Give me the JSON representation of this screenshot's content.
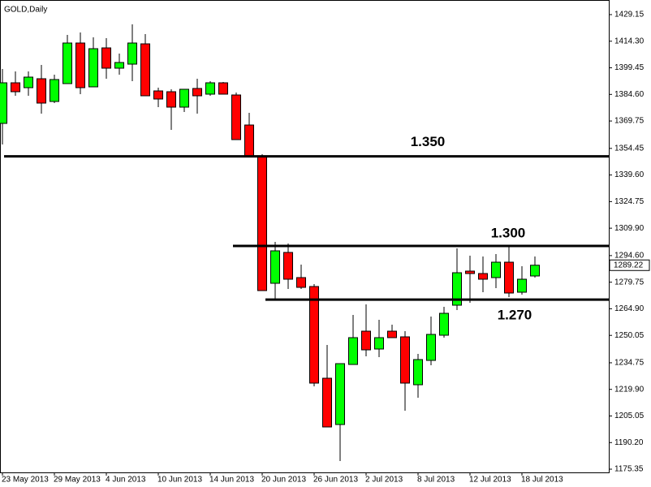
{
  "chart_data": {
    "type": "candlestick",
    "title": "GOLD,Daily",
    "categories": [
      "23 May 2013",
      null,
      null,
      null,
      "29 May 2013",
      null,
      null,
      null,
      "4 Jun 2013",
      null,
      null,
      null,
      "10 Jun 2013",
      null,
      null,
      null,
      "14 Jun 2013",
      null,
      null,
      null,
      "20 Jun 2013",
      null,
      null,
      null,
      "26 Jun 2013",
      null,
      null,
      null,
      "2 Jul 2013",
      null,
      null,
      null,
      "8 Jul 2013",
      null,
      null,
      null,
      "12 Jul 2013",
      null,
      null,
      null,
      "18 Jul 2013",
      null
    ],
    "open": [
      1368.42,
      1391.08,
      1388.36,
      1393.35,
      1380.66,
      1390.63,
      1413.29,
      1388.82,
      1410.57,
      1399.24,
      1401.5,
      1412.83,
      1386.55,
      1386.1,
      1377.49,
      1387.91,
      1384.74,
      1391.08,
      1384.28,
      1367.51,
      1350.29,
      1279.14,
      1296.36,
      1282.31,
      1277.33,
      1226.12,
      1200.28,
      1233.82,
      1252.4,
      1242.43,
      1252.4,
      1249.23,
      1222.49,
      1236.09,
      1250.14,
      1266.9,
      1285.94,
      1284.58,
      1282.31,
      1290.92,
      1274.15,
      1283.22
    ],
    "high": [
      1398.79,
      1397.43,
      1397.43,
      1401.05,
      1395.61,
      1417.82,
      1419.18,
      1416.46,
      1416.01,
      1407.4,
      1423.71,
      1418.27,
      1388.36,
      1387.46,
      1387.46,
      1393.35,
      1391.99,
      1391.53,
      1385.64,
      1374.31,
      1351.2,
      1302.25,
      1301.35,
      1289.56,
      1278.69,
      1244.7,
      1234.27,
      1261.47,
      1267.36,
      1258.75,
      1256.03,
      1252.4,
      1239.71,
      1260.56,
      1266.0,
      1298.63,
      1294.55,
      1294.1,
      1295.46,
      1299.99,
      1288.66,
      1294.1
    ],
    "low": [
      1356.64,
      1383.83,
      1383.83,
      1373.86,
      1379.75,
      1390.63,
      1384.74,
      1388.82,
      1393.35,
      1395.61,
      1391.99,
      1383.83,
      1377.49,
      1364.8,
      1374.77,
      1373.86,
      1383.83,
      1384.74,
      1359.36,
      1349.84,
      1275.06,
      1269.62,
      1275.97,
      1275.97,
      1221.58,
      1198.92,
      1179.89,
      1233.82,
      1238.35,
      1237.9,
      1248.78,
      1207.99,
      1215.24,
      1233.37,
      1248.78,
      1264.19,
      1268.26,
      1274.15,
      1276.42,
      1271.44,
      1272.8,
      1282.31
    ],
    "close": [
      1391.08,
      1386.1,
      1394.25,
      1379.75,
      1392.89,
      1413.29,
      1388.36,
      1410.12,
      1399.24,
      1402.41,
      1413.29,
      1383.83,
      1382.02,
      1377.49,
      1387.46,
      1383.83,
      1391.08,
      1384.74,
      1359.36,
      1349.84,
      1275.06,
      1297.27,
      1281.41,
      1276.87,
      1223.4,
      1198.92,
      1234.27,
      1248.78,
      1241.98,
      1248.78,
      1248.78,
      1223.4,
      1236.54,
      1250.59,
      1262.37,
      1285.03,
      1284.58,
      1281.41,
      1290.92,
      1273.7,
      1281.41,
      1289.22
    ],
    "up_color": "#00ff00",
    "down_color": "#ff0000",
    "ylim": [
      1173.55,
      1437.31
    ],
    "yticks": [
      1429.15,
      {
        "value": 1414.3,
        "label": "1414.30"
      },
      1399.45,
      {
        "value": 1384.6,
        "label": "1384.60"
      },
      1369.75,
      1354.45,
      {
        "value": 1339.6,
        "label": "1339.60"
      },
      1324.75,
      {
        "value": 1309.9,
        "label": "1309.90"
      },
      {
        "value": 1294.6,
        "label": "1294.60"
      },
      1279.75,
      {
        "value": 1264.9,
        "label": "1264.90"
      },
      1250.05,
      1234.75,
      {
        "value": 1219.9,
        "label": "1219.90"
      },
      1205.05,
      {
        "value": 1190.2,
        "label": "1190.20"
      },
      1175.35
    ],
    "levels": [
      {
        "value": 1350,
        "label": "1.350"
      },
      {
        "value": 1300,
        "label": "1.300"
      },
      {
        "value": 1270,
        "label": "1.270"
      }
    ]
  }
}
